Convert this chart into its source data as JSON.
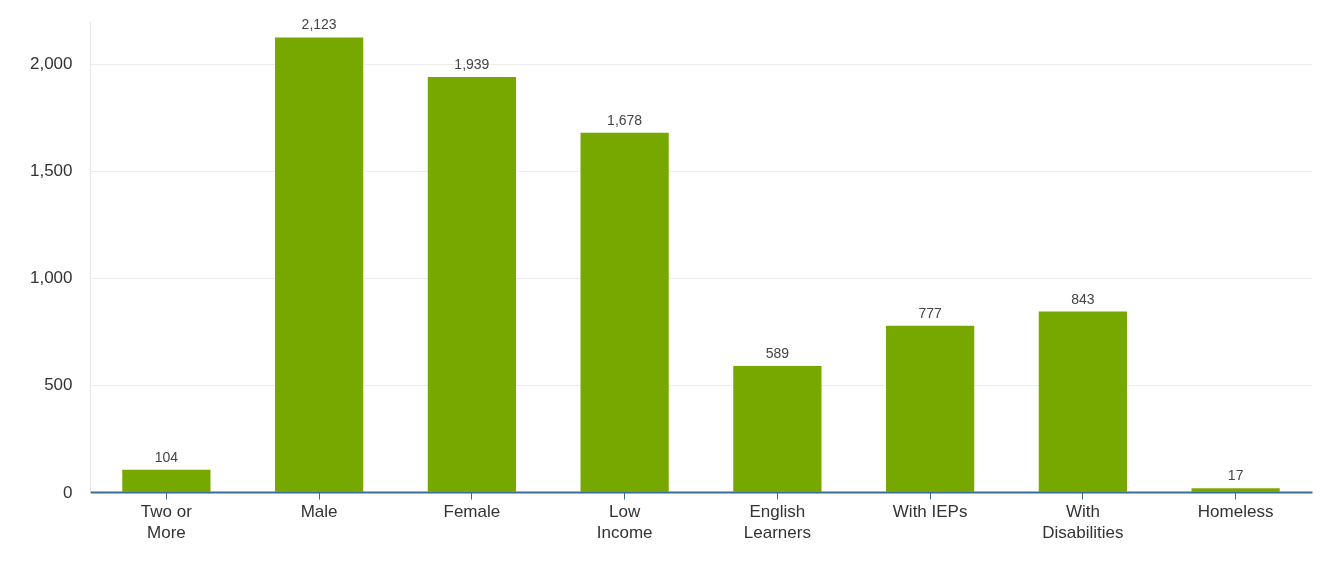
{
  "chart_data": {
    "type": "bar",
    "categories": [
      "Two or More",
      "Male",
      "Female",
      "Low Income",
      "English Learners",
      "With IEPs",
      "With Disabilities",
      "Homeless"
    ],
    "values": [
      104,
      2123,
      1939,
      1678,
      589,
      777,
      843,
      17
    ],
    "value_labels": [
      "104",
      "2,123",
      "1,939",
      "1,678",
      "589",
      "777",
      "843",
      "17"
    ],
    "color": "#77a800",
    "ylim": [
      0,
      2200
    ],
    "yticks": [
      0,
      {
        "value": 500,
        "label": "500"
      },
      {
        "value": 1000,
        "label": "1,000"
      },
      {
        "value": 1500,
        "label": "1,500"
      },
      {
        "value": 2000,
        "label": "2,000"
      }
    ],
    "grid": "y"
  }
}
